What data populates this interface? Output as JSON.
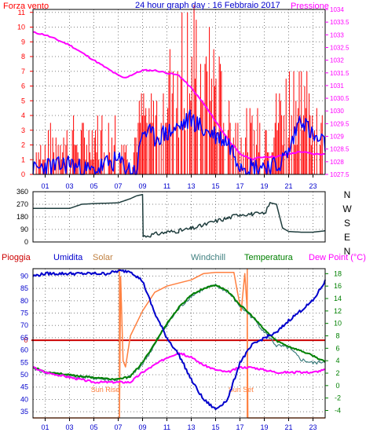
{
  "header": {
    "left_label": "Forza vento",
    "title": "24 hour graph day : 16 Febbraio 2017",
    "right_label": "Pressione"
  },
  "legend": {
    "pioggia": "Pioggia",
    "umidita": "Umidita",
    "solar": "Solar",
    "windchill": "Windchill",
    "temperatura": "Temperatura",
    "dew_point": "Dew Point (°C)"
  },
  "annotations": {
    "sunrise": "Sun Rise",
    "sunset": "Sun Set"
  },
  "colors": {
    "wind_gust": "#ff0000",
    "wind_avg": "#0000ff",
    "pressure": "#ff00ff",
    "direction": "#1f3d3d",
    "humidity": "#0000cc",
    "solar": "#ff8040",
    "windchill": "#408080",
    "temperature": "#008000",
    "dew_point": "#ff00ff",
    "rain": "#cc0000",
    "sun_marker": "#ff8040",
    "grid": "#808080",
    "frame": "#000000"
  },
  "chart_data": [
    {
      "id": "wind_pressure",
      "type": "line",
      "xlabel": "",
      "x_ticks": [
        "01",
        "03",
        "05",
        "07",
        "09",
        "11",
        "13",
        "15",
        "17",
        "19",
        "21",
        "23"
      ],
      "y_left": {
        "label": "Forza vento",
        "ticks": [
          0,
          1,
          2,
          3,
          4,
          5,
          6,
          7,
          8,
          9,
          10,
          11
        ],
        "range": [
          0,
          11.2
        ]
      },
      "y_right": {
        "label": "Pressione",
        "ticks": [
          "1027.5",
          "1028",
          "1028.5",
          "1029",
          "1029.5",
          "1030",
          "1030.5",
          "1031",
          "1031.5",
          "1032",
          "1032.5",
          "1033",
          "1033.5",
          "1034"
        ],
        "range": [
          1027.5,
          1034.0
        ]
      },
      "series": [
        {
          "name": "Pressione",
          "axis": "right",
          "x": [
            0,
            1,
            2,
            3,
            4,
            5,
            6,
            7,
            7.5,
            8,
            9,
            10,
            11,
            12,
            13,
            14,
            15,
            16,
            17,
            18,
            19,
            20,
            21,
            22,
            23,
            24
          ],
          "values": [
            1033.1,
            1033.0,
            1032.8,
            1032.6,
            1032.3,
            1032.0,
            1031.7,
            1031.4,
            1031.3,
            1031.4,
            1031.6,
            1031.6,
            1031.5,
            1031.4,
            1030.9,
            1030.3,
            1029.6,
            1028.9,
            1028.3,
            1028.1,
            1028.2,
            1028.2,
            1028.3,
            1028.4,
            1028.3,
            1028.3
          ]
        },
        {
          "name": "",
          "axis": "left",
          "style": "gust_bars",
          "x": [
            0,
            1,
            2,
            3,
            4,
            5,
            6,
            7,
            8,
            9,
            10,
            11,
            12,
            13,
            14,
            15,
            16,
            17,
            18,
            19,
            20,
            21,
            22,
            23,
            24
          ],
          "values": [
            1.5,
            2.5,
            3.5,
            3.5,
            3,
            3.5,
            3.5,
            4,
            1.5,
            5.5,
            5.5,
            8,
            9.5,
            11,
            9,
            8,
            5,
            4,
            3.5,
            4,
            5,
            7.5,
            7,
            6.5,
            3
          ]
        },
        {
          "name": "",
          "axis": "left",
          "x": [
            0,
            1,
            2,
            3,
            4,
            5,
            6,
            7,
            8,
            8.5,
            9,
            10,
            11,
            12,
            13,
            14,
            15,
            16,
            17,
            18,
            19,
            20,
            21,
            22,
            23,
            24
          ],
          "values": [
            0.2,
            0.6,
            0.5,
            0.8,
            0.3,
            0.2,
            0.7,
            0.9,
            0.3,
            0.2,
            3.0,
            2.5,
            2.8,
            3.2,
            3.8,
            3.0,
            2.7,
            2.2,
            0.8,
            0.5,
            0.6,
            0.5,
            1.5,
            4.0,
            2.5,
            2.0
          ]
        }
      ]
    },
    {
      "id": "wind_direction",
      "type": "line",
      "xlabel": "",
      "y_left": {
        "ticks": [
          0,
          90,
          180,
          270,
          360
        ],
        "range": [
          0,
          360
        ]
      },
      "y_right_labels": [
        "N",
        "W",
        "S",
        "E",
        "N"
      ],
      "series": [
        {
          "name": "",
          "x": [
            0,
            3,
            4,
            5,
            7,
            8,
            8.5,
            9,
            9.05,
            10,
            11,
            12,
            13,
            14,
            15,
            16,
            17,
            18,
            19,
            19.5,
            20,
            20.5,
            21,
            22,
            23,
            24
          ],
          "values": [
            240,
            240,
            270,
            275,
            280,
            310,
            330,
            340,
            40,
            55,
            70,
            80,
            95,
            120,
            150,
            170,
            200,
            200,
            200,
            280,
            270,
            100,
            75,
            70,
            70,
            80
          ]
        }
      ]
    },
    {
      "id": "temp_humidity",
      "type": "line",
      "xlabel": "",
      "x_ticks": [
        "01",
        "03",
        "05",
        "07",
        "09",
        "11",
        "13",
        "15",
        "17",
        "19",
        "21",
        "23"
      ],
      "y_left": {
        "label": "Umidita",
        "ticks": [
          35,
          40,
          45,
          50,
          55,
          60,
          65,
          70,
          75,
          80,
          85,
          90
        ],
        "range": [
          32.5,
          93
        ]
      },
      "y_right": {
        "label": "Temperatura",
        "ticks": [
          -4,
          -2,
          0,
          2,
          4,
          6,
          8,
          10,
          12,
          14,
          16,
          18
        ],
        "range": [
          -5.2,
          18.8
        ]
      },
      "rain_marker": {
        "label": "0",
        "value": 0
      },
      "sun_events": {
        "rise_hour": 7.1,
        "set_hour": 17.6
      },
      "series": [
        {
          "name": "Umidita",
          "axis": "left",
          "x": [
            0,
            1,
            2,
            3,
            4,
            5,
            6,
            7,
            8,
            9,
            10,
            11,
            12,
            13,
            14,
            15,
            16,
            17,
            18,
            19,
            20,
            21,
            22,
            23,
            24
          ],
          "values": [
            90,
            91,
            91,
            91,
            91,
            91,
            91,
            92,
            92,
            88,
            75,
            65,
            58,
            48,
            40,
            36,
            40,
            55,
            62,
            65,
            67,
            72,
            76,
            80,
            88
          ]
        },
        {
          "name": "Solar",
          "axis": "right",
          "x": [
            0,
            7.1,
            7.2,
            7.4,
            7.6,
            8,
            9,
            10,
            11,
            12,
            13,
            14,
            15,
            16,
            16.5,
            16.8,
            17.1,
            17.4,
            17.6,
            17.65,
            24
          ],
          "values": [
            -5.2,
            -5.2,
            17.5,
            4,
            3,
            8,
            12,
            15,
            16,
            16.5,
            17,
            18,
            18.2,
            18.2,
            18.2,
            15,
            12,
            18,
            12,
            -5.2,
            -5.2
          ]
        },
        {
          "name": "Windchill",
          "axis": "right",
          "x": [
            0,
            1,
            2,
            3,
            4,
            5,
            6,
            7,
            8,
            9,
            10,
            11,
            12,
            13,
            14,
            15,
            16,
            17,
            18,
            19,
            20,
            21,
            22,
            23,
            24
          ],
          "values": [
            2.8,
            2.1,
            1.9,
            1.5,
            1.4,
            1.2,
            1.0,
            0.9,
            1.4,
            3.5,
            6.5,
            9.8,
            12.4,
            14.4,
            15.5,
            16.1,
            15.1,
            12.8,
            11.0,
            8.7,
            6.4,
            6.1,
            4.2,
            3.6,
            3.9
          ]
        },
        {
          "name": "Temperatura",
          "axis": "right",
          "x": [
            0,
            1,
            2,
            3,
            4,
            5,
            6,
            7,
            8,
            9,
            10,
            11,
            12,
            13,
            14,
            15,
            16,
            17,
            18,
            19,
            20,
            21,
            22,
            23,
            24
          ],
          "values": [
            3.0,
            2.2,
            2.0,
            1.7,
            1.5,
            1.3,
            1.1,
            1.0,
            1.5,
            3.7,
            6.8,
            10.0,
            12.6,
            14.6,
            15.6,
            16.2,
            15.2,
            13.0,
            11.2,
            9.0,
            7.2,
            6.3,
            5.6,
            4.8,
            3.8
          ]
        },
        {
          "name": "Dew Point (°C)",
          "axis": "left",
          "x": [
            0,
            1,
            2,
            3,
            4,
            5,
            6,
            7,
            8,
            9,
            10,
            11,
            12,
            13,
            14,
            15,
            16,
            17,
            18,
            19,
            20,
            21,
            22,
            23,
            24
          ],
          "values": [
            53,
            51,
            50,
            49,
            48,
            47,
            47,
            47,
            47,
            51,
            54,
            57,
            59,
            57,
            54,
            52,
            51,
            53,
            53,
            52,
            51,
            51,
            51,
            51,
            52
          ]
        }
      ]
    }
  ]
}
